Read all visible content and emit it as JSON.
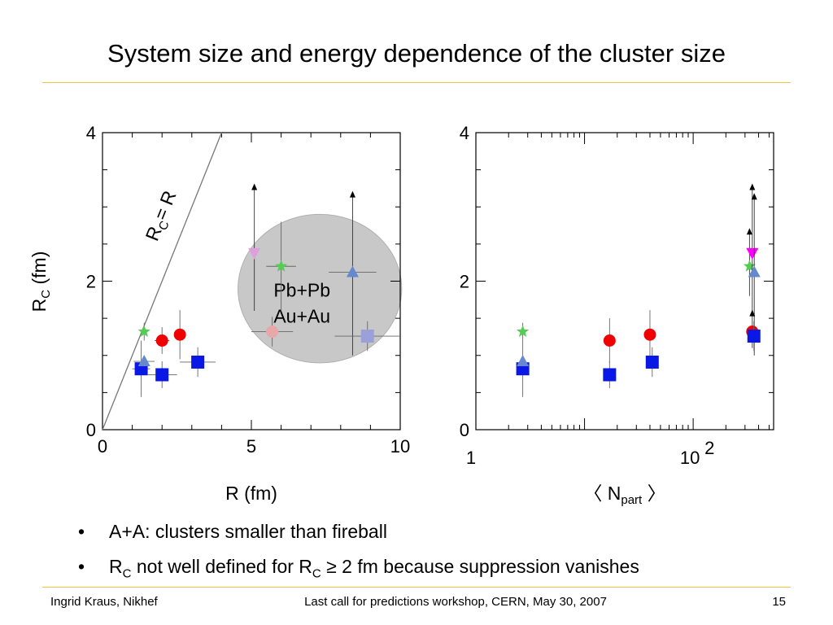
{
  "slide": {
    "title": "System size and energy dependence of the cluster size",
    "bullets": [
      {
        "pre": "A+A: clusters smaller than fireball",
        "sub": "",
        "post": ""
      },
      {
        "pre": "R",
        "sub": "C",
        "post": " not well defined for R",
        "sub2": "C",
        "post2": " ≥ 2 fm because suppression vanishes"
      }
    ],
    "footer": {
      "author": "Ingrid Kraus, Nikhef",
      "event": "Last call for predictions workshop, CERN, May 30, 2007",
      "page": "15"
    }
  },
  "colors": {
    "rule": "#f2c53d",
    "blue_square": "#0a18e6",
    "light_square": "#9aa0d8",
    "red_circle": "#f00000",
    "light_circle": "#e8a8a8",
    "green_star": "#55cc55",
    "blue_triangle": "#6688cc",
    "magenta_triangle": "#ff00ff",
    "light_magenta_triangle": "#dda0dd",
    "ellipse_fill": "#c8c8c8"
  },
  "chart_data": [
    {
      "type": "scatter",
      "xlabel": "R (fm)",
      "ylabel": "R_C (fm)",
      "ylabel_main": "R",
      "ylabel_sub": "C",
      "ylabel_unit": " (fm)",
      "xlim": [
        0,
        10
      ],
      "ylim": [
        0,
        4
      ],
      "xticks": [
        "0",
        "5",
        "10"
      ],
      "yticks": [
        "0",
        "2",
        "4"
      ],
      "xtick_values": [
        0,
        5,
        10
      ],
      "ytick_values": [
        0,
        2,
        4
      ],
      "line_label": "R_C = R",
      "line_label_main": "R",
      "line_label_sub": "C",
      "line_label_rest": "= R",
      "ellipse_label": [
        "Pb+Pb",
        "Au+Au"
      ],
      "ellipse_data": {
        "cx": 7.3,
        "cy": 1.9,
        "rx": 2.75,
        "ry": 1.0
      },
      "points": [
        {
          "marker": "square",
          "color": "blue_square",
          "x": 1.3,
          "y": 0.82,
          "xerr": 0.3,
          "yerr": 0.38
        },
        {
          "marker": "triangle-up",
          "color": "blue_triangle",
          "x": 1.4,
          "y": 0.92,
          "xerr": 0.35,
          "yerr": 0.0
        },
        {
          "marker": "star",
          "color": "green_star",
          "x": 1.4,
          "y": 1.32,
          "xerr": 0.0,
          "yerr": 0.12
        },
        {
          "marker": "circle",
          "color": "red_circle",
          "x": 2.0,
          "y": 1.2,
          "xerr": 0.25,
          "yerr": 0.18
        },
        {
          "marker": "square",
          "color": "blue_square",
          "x": 2.0,
          "y": 0.74,
          "xerr": 0.5,
          "yerr": 0.18
        },
        {
          "marker": "circle",
          "color": "red_circle",
          "x": 2.6,
          "y": 1.28,
          "xerr": 0.0,
          "yerr": 0.33
        },
        {
          "marker": "square",
          "color": "blue_square",
          "x": 3.2,
          "y": 0.91,
          "xerr": 0.6,
          "yerr": 0.2
        },
        {
          "marker": "triangle-down",
          "color": "light_magenta_triangle",
          "x": 5.1,
          "y": 2.38,
          "xerr": 0.0,
          "yerr": 0.0,
          "arrow_to": 3.25,
          "low": 1.6
        },
        {
          "marker": "star",
          "color": "green_star",
          "x": 6.0,
          "y": 2.2,
          "xerr": 0.5,
          "yerr": 0.6
        },
        {
          "marker": "circle",
          "color": "light_circle",
          "x": 5.7,
          "y": 1.32,
          "xerr": 0.7,
          "yerr": 0.2
        },
        {
          "marker": "triangle-up",
          "color": "blue_triangle",
          "x": 8.4,
          "y": 2.12,
          "xerr": 0.8,
          "yerr": 0.0,
          "arrow_to": 3.15,
          "low": 1.0
        },
        {
          "marker": "square",
          "color": "light_square",
          "x": 8.9,
          "y": 1.26,
          "xerr": 1.1,
          "yerr": 0.2
        }
      ]
    },
    {
      "type": "scatter",
      "xlabel": "〈 N_part 〉",
      "xlabel_open": "〈 N",
      "xlabel_sub": "part",
      "xlabel_close": "〉",
      "x_scale": "log",
      "xlim": [
        1,
        550
      ],
      "ylim": [
        0,
        4
      ],
      "xticks": [
        "1",
        "10"
      ],
      "xtick_sup": "2",
      "xtick_values": [
        1,
        100
      ],
      "yticks": [
        "0",
        "2",
        "4"
      ],
      "ytick_values": [
        0,
        2,
        4
      ],
      "points": [
        {
          "marker": "square",
          "color": "blue_square",
          "x": 2.7,
          "y": 0.82,
          "yerr": 0.38
        },
        {
          "marker": "triangle-up",
          "color": "blue_triangle",
          "x": 2.7,
          "y": 0.92,
          "yerr": 0.0
        },
        {
          "marker": "star",
          "color": "green_star",
          "x": 2.7,
          "y": 1.32,
          "yerr": 0.12
        },
        {
          "marker": "circle",
          "color": "red_circle",
          "x": 17,
          "y": 1.2,
          "yerr": 0.3
        },
        {
          "marker": "square",
          "color": "blue_square",
          "x": 17,
          "y": 0.74,
          "yerr": 0.18
        },
        {
          "marker": "circle",
          "color": "red_circle",
          "x": 40,
          "y": 1.28,
          "yerr": 0.33
        },
        {
          "marker": "square",
          "color": "blue_square",
          "x": 42,
          "y": 0.91,
          "yerr": 0.2
        },
        {
          "marker": "star",
          "color": "green_star",
          "x": 330,
          "y": 2.2,
          "yerr": 0.0,
          "arrow_to": 2.65,
          "low": 1.8
        },
        {
          "marker": "triangle-down",
          "color": "magenta_triangle",
          "x": 350,
          "y": 2.38,
          "yerr": 0.0,
          "arrow_to": 3.25,
          "low": 1.6
        },
        {
          "marker": "triangle-up",
          "color": "blue_triangle",
          "x": 365,
          "y": 2.12,
          "yerr": 0.0,
          "arrow_to": 3.12,
          "low": 1.0
        },
        {
          "marker": "circle",
          "color": "red_circle",
          "x": 350,
          "y": 1.32,
          "yerr": 0.0,
          "arrow_to": 1.55,
          "low": 1.1
        },
        {
          "marker": "square",
          "color": "blue_square",
          "x": 362,
          "y": 1.26,
          "yerr": 0.2
        }
      ]
    }
  ]
}
